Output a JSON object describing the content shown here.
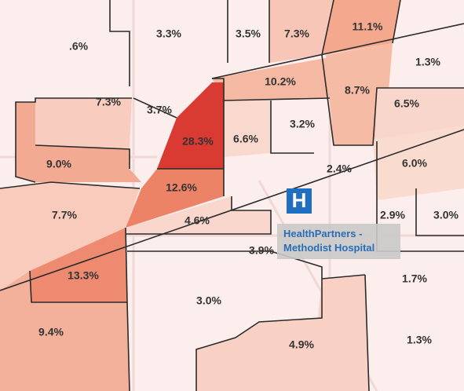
{
  "regions": [
    {
      "label": ".6%"
    },
    {
      "label": "3.3%"
    },
    {
      "label": "3.5%"
    },
    {
      "label": "7.3%"
    },
    {
      "label": "11.1%"
    },
    {
      "label": "1.3%"
    },
    {
      "label": "10.2%"
    },
    {
      "label": "8.7%"
    },
    {
      "label": "6.5%"
    },
    {
      "label": "7.3%"
    },
    {
      "label": "3.7%"
    },
    {
      "label": "28.3%"
    },
    {
      "label": "6.6%"
    },
    {
      "label": "3.2%"
    },
    {
      "label": "9.0%"
    },
    {
      "label": "2.4%"
    },
    {
      "label": "6.0%"
    },
    {
      "label": "12.6%"
    },
    {
      "label": "7.7%"
    },
    {
      "label": "4.6%"
    },
    {
      "label": "2.9%"
    },
    {
      "label": "3.0%"
    },
    {
      "label": "3.9%"
    },
    {
      "label": "13.3%"
    },
    {
      "label": "1.7%"
    },
    {
      "label": "3.0%"
    },
    {
      "label": "9.4%"
    },
    {
      "label": "4.9%"
    },
    {
      "label": "1.3%"
    }
  ],
  "hospital": {
    "icon": "H",
    "name_line1": "HealthPartners -",
    "name_line2": "Methodist Hospital"
  }
}
